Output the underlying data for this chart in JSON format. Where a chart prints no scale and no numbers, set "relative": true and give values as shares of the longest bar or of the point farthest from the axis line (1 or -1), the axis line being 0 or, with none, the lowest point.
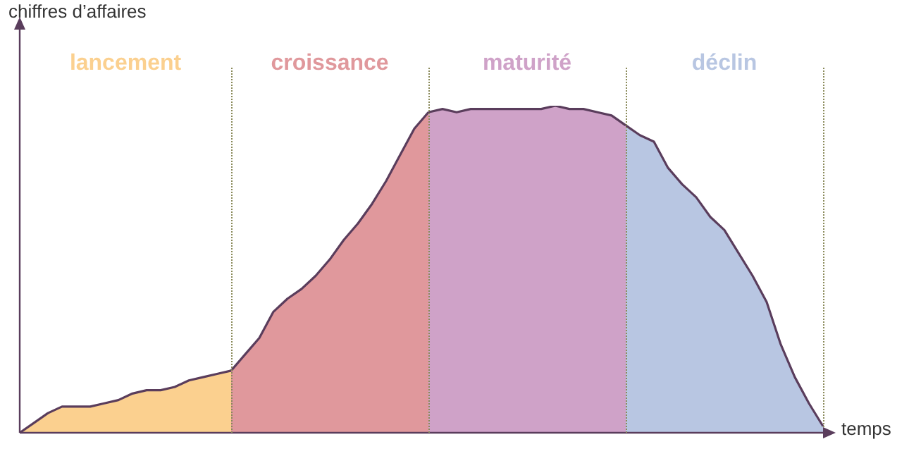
{
  "chart_data": {
    "type": "area",
    "relative": true,
    "xlabel": "temps",
    "ylabel": "chiffres d’affaires",
    "legend": false,
    "grid": "x",
    "categories": [
      null,
      null,
      null,
      null,
      null,
      null,
      null,
      null,
      null,
      null,
      null,
      null,
      null,
      null,
      null,
      null,
      null,
      null,
      null,
      null,
      null,
      null,
      null,
      null,
      null,
      null,
      null,
      null,
      null,
      null,
      null,
      null,
      null,
      null,
      null,
      null,
      null,
      null,
      null,
      null,
      null,
      null,
      null,
      null,
      null,
      null,
      null,
      null,
      null,
      null,
      null,
      null,
      null,
      null,
      null,
      null,
      null,
      null
    ],
    "series": [
      {
        "name": "lancement",
        "color": "#fbd08f",
        "values": [
          0,
          0.03,
          0.06,
          0.08,
          0.08,
          0.08,
          0.09,
          0.1,
          0.12,
          0.13,
          0.13,
          0.14,
          0.16,
          0.17,
          0.18,
          0.19,
          null,
          null,
          null,
          null,
          null,
          null,
          null,
          null,
          null,
          null,
          null,
          null,
          null,
          null,
          null,
          null,
          null,
          null,
          null,
          null,
          null,
          null,
          null,
          null,
          null,
          null,
          null,
          null,
          null,
          null,
          null,
          null,
          null,
          null,
          null,
          null,
          null,
          null,
          null,
          null,
          null,
          null
        ]
      },
      {
        "name": "croissance",
        "color": "#e0989c",
        "values": [
          null,
          null,
          null,
          null,
          null,
          null,
          null,
          null,
          null,
          null,
          null,
          null,
          null,
          null,
          null,
          0.19,
          0.24,
          0.29,
          0.37,
          0.41,
          0.44,
          0.48,
          0.53,
          0.59,
          0.64,
          0.7,
          0.77,
          0.85,
          0.93,
          0.98,
          null,
          null,
          null,
          null,
          null,
          null,
          null,
          null,
          null,
          null,
          null,
          null,
          null,
          null,
          null,
          null,
          null,
          null,
          null,
          null,
          null,
          null,
          null,
          null,
          null,
          null,
          null,
          null
        ]
      },
      {
        "name": "maturité",
        "color": "#cfa2c8",
        "values": [
          null,
          null,
          null,
          null,
          null,
          null,
          null,
          null,
          null,
          null,
          null,
          null,
          null,
          null,
          null,
          null,
          null,
          null,
          null,
          null,
          null,
          null,
          null,
          null,
          null,
          null,
          null,
          null,
          null,
          0.98,
          0.99,
          0.98,
          0.99,
          0.99,
          0.99,
          0.99,
          0.99,
          0.99,
          1,
          0.99,
          0.99,
          0.98,
          0.97,
          0.94,
          null,
          null,
          null,
          null,
          null,
          null,
          null,
          null,
          null,
          null,
          null,
          null,
          null,
          null
        ]
      },
      {
        "name": "déclin",
        "color": "#b8c6e2",
        "values": [
          null,
          null,
          null,
          null,
          null,
          null,
          null,
          null,
          null,
          null,
          null,
          null,
          null,
          null,
          null,
          null,
          null,
          null,
          null,
          null,
          null,
          null,
          null,
          null,
          null,
          null,
          null,
          null,
          null,
          null,
          null,
          null,
          null,
          null,
          null,
          null,
          null,
          null,
          null,
          null,
          null,
          null,
          null,
          0.94,
          0.91,
          0.89,
          0.81,
          0.76,
          0.72,
          0.66,
          0.62,
          0.55,
          0.48,
          0.4,
          0.27,
          0.17,
          0.09,
          0.02
        ]
      }
    ]
  }
}
